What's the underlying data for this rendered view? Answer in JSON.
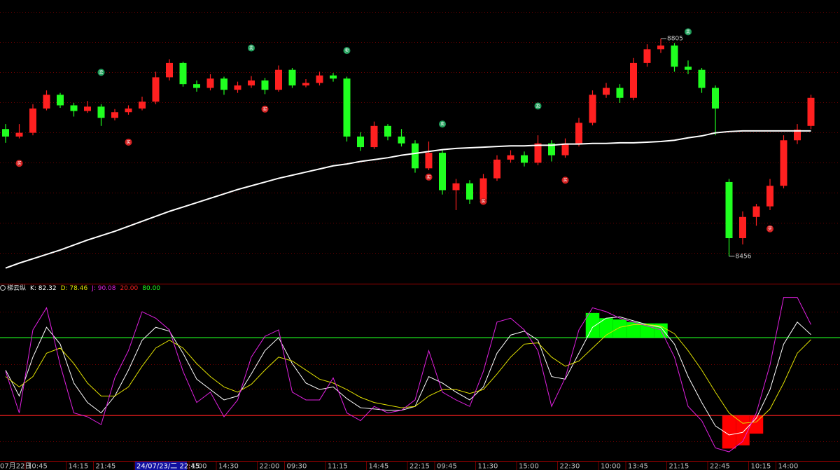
{
  "chart_data": [
    {
      "type": "candlestick",
      "categories": [
        "07月22日",
        null,
        "10:45",
        null,
        null,
        "14:15",
        null,
        "21:45",
        null,
        null,
        "24/07/23/二 22:45",
        null,
        null,
        null,
        "1:00",
        null,
        "14:30",
        null,
        null,
        "22:00",
        null,
        "09:30",
        null,
        null,
        "11:15",
        null,
        null,
        "14:45",
        null,
        null,
        "22:15",
        null,
        "09:45",
        null,
        null,
        "11:30",
        null,
        null,
        "15:00",
        null,
        null,
        "22:30",
        null,
        null,
        "10:00",
        null,
        "13:45",
        null,
        null,
        "21:15",
        null,
        null,
        "22:45",
        null,
        null,
        "10:15",
        null,
        "14:00",
        null,
        null
      ],
      "highlight_category": 10,
      "candles": [
        [
          8660,
          8668,
          8638,
          8648
        ],
        [
          8648,
          8668,
          8645,
          8654
        ],
        [
          8654,
          8700,
          8650,
          8693
        ],
        [
          8693,
          8722,
          8690,
          8715
        ],
        [
          8715,
          8718,
          8694,
          8698
        ],
        [
          8698,
          8702,
          8680,
          8689
        ],
        [
          8689,
          8705,
          8686,
          8696
        ],
        [
          8696,
          8700,
          8665,
          8678
        ],
        [
          8678,
          8692,
          8674,
          8687
        ],
        [
          8687,
          8698,
          8683,
          8693
        ],
        [
          8693,
          8712,
          8690,
          8704
        ],
        [
          8704,
          8752,
          8700,
          8743
        ],
        [
          8743,
          8772,
          8738,
          8766
        ],
        [
          8766,
          8768,
          8728,
          8732
        ],
        [
          8732,
          8738,
          8720,
          8726
        ],
        [
          8726,
          8748,
          8722,
          8741
        ],
        [
          8741,
          8744,
          8715,
          8723
        ],
        [
          8723,
          8736,
          8718,
          8730
        ],
        [
          8730,
          8745,
          8726,
          8738
        ],
        [
          8738,
          8742,
          8716,
          8723
        ],
        [
          8723,
          8762,
          8720,
          8755
        ],
        [
          8755,
          8758,
          8726,
          8730
        ],
        [
          8730,
          8740,
          8727,
          8734
        ],
        [
          8734,
          8752,
          8730,
          8746
        ],
        [
          8746,
          8750,
          8736,
          8741
        ],
        [
          8741,
          8744,
          8640,
          8648
        ],
        [
          8648,
          8655,
          8625,
          8631
        ],
        [
          8631,
          8672,
          8628,
          8665
        ],
        [
          8665,
          8668,
          8642,
          8648
        ],
        [
          8648,
          8660,
          8632,
          8637
        ],
        [
          8637,
          8642,
          8590,
          8597
        ],
        [
          8597,
          8640,
          8594,
          8622
        ],
        [
          8622,
          8626,
          8555,
          8562
        ],
        [
          8562,
          8580,
          8530,
          8573
        ],
        [
          8573,
          8578,
          8540,
          8547
        ],
        [
          8547,
          8588,
          8544,
          8581
        ],
        [
          8581,
          8618,
          8577,
          8611
        ],
        [
          8611,
          8626,
          8606,
          8618
        ],
        [
          8618,
          8624,
          8600,
          8606
        ],
        [
          8606,
          8650,
          8602,
          8637
        ],
        [
          8637,
          8642,
          8608,
          8618
        ],
        [
          8618,
          8645,
          8614,
          8637
        ],
        [
          8637,
          8678,
          8632,
          8670
        ],
        [
          8670,
          8722,
          8666,
          8715
        ],
        [
          8715,
          8734,
          8710,
          8726
        ],
        [
          8726,
          8732,
          8702,
          8710
        ],
        [
          8710,
          8774,
          8706,
          8766
        ],
        [
          8766,
          8796,
          8760,
          8788
        ],
        [
          8788,
          8805,
          8782,
          8794
        ],
        [
          8794,
          8798,
          8752,
          8760
        ],
        [
          8760,
          8770,
          8748,
          8755
        ],
        [
          8755,
          8758,
          8718,
          8726
        ],
        [
          8726,
          8730,
          8650,
          8693
        ],
        [
          8575,
          8580,
          8456,
          8485
        ],
        [
          8485,
          8528,
          8475,
          8519
        ],
        [
          8519,
          8540,
          8505,
          8536
        ],
        [
          8536,
          8580,
          8530,
          8569
        ],
        [
          8569,
          8650,
          8565,
          8642
        ],
        [
          8642,
          8668,
          8636,
          8659
        ],
        [
          8665,
          8715,
          8660,
          8710
        ]
      ],
      "up_color": "#ff2020",
      "down_color": "#20ff20",
      "ylim": [
        8412,
        8867
      ],
      "moving_average": {
        "color": "#ffffff",
        "values": [
          8437,
          8445,
          8452,
          8459,
          8466,
          8474,
          8482,
          8489,
          8496,
          8504,
          8512,
          8520,
          8528,
          8535,
          8542,
          8549,
          8556,
          8563,
          8569,
          8575,
          8581,
          8586,
          8591,
          8596,
          8601,
          8604,
          8608,
          8611,
          8614,
          8618,
          8621,
          8624,
          8627,
          8629,
          8630,
          8631,
          8632,
          8633,
          8633,
          8634,
          8634,
          8636,
          8636,
          8637,
          8637,
          8638,
          8638,
          8639,
          8640,
          8642,
          8646,
          8649,
          8654,
          8656,
          8657,
          8657,
          8657,
          8657,
          8657,
          8657
        ]
      },
      "signals": [
        {
          "name": "卖",
          "color": "#1f9e5a",
          "values": [
            null,
            null,
            null,
            null,
            null,
            null,
            null,
            8751,
            null,
            null,
            null,
            null,
            null,
            null,
            null,
            null,
            null,
            null,
            8790,
            null,
            null,
            null,
            null,
            null,
            null,
            8786,
            null,
            null,
            null,
            null,
            null,
            null,
            8668,
            null,
            null,
            null,
            null,
            null,
            null,
            8697,
            null,
            null,
            null,
            null,
            null,
            null,
            null,
            null,
            null,
            null,
            8816,
            null,
            null,
            null,
            null,
            null,
            null,
            null,
            null,
            null
          ]
        },
        {
          "name": "买",
          "color": "#d42020",
          "values": [
            null,
            8605,
            null,
            null,
            null,
            null,
            null,
            null,
            null,
            8639,
            null,
            null,
            null,
            null,
            null,
            null,
            null,
            null,
            null,
            8692,
            null,
            null,
            null,
            null,
            null,
            null,
            null,
            null,
            null,
            null,
            null,
            8583,
            null,
            null,
            null,
            8544,
            null,
            null,
            null,
            null,
            null,
            8578,
            null,
            null,
            null,
            null,
            null,
            null,
            null,
            null,
            null,
            null,
            null,
            null,
            null,
            null,
            8500,
            null,
            null,
            null
          ]
        }
      ],
      "extremes": [
        {
          "value": 8805,
          "label": "8805"
        },
        {
          "value": 8456,
          "label": "8456"
        }
      ]
    },
    {
      "type": "line",
      "title": "梯云纵",
      "ylim": [
        -15,
        121.6
      ],
      "series": [
        {
          "name": "K: 82.32",
          "color": "#ffffff",
          "values": [
            55,
            35,
            65,
            88,
            75,
            45,
            30,
            22,
            35,
            55,
            78,
            88,
            85,
            68,
            48,
            40,
            32,
            35,
            52,
            70,
            80,
            60,
            45,
            40,
            42,
            33,
            26,
            25,
            24,
            24,
            27,
            50,
            45,
            38,
            32,
            42,
            68,
            82,
            85,
            78,
            50,
            48,
            68,
            88,
            95,
            96,
            93,
            90,
            88,
            75,
            50,
            30,
            12,
            5,
            7,
            18,
            40,
            75,
            92,
            82.32
          ]
        },
        {
          "name": "D: 78.46",
          "color": "#e0e000",
          "values": [
            50,
            42,
            50,
            68,
            72,
            60,
            45,
            35,
            35,
            42,
            58,
            72,
            78,
            72,
            60,
            50,
            42,
            38,
            44,
            55,
            65,
            62,
            55,
            48,
            45,
            40,
            34,
            30,
            28,
            26,
            27,
            35,
            40,
            40,
            37,
            40,
            52,
            65,
            75,
            76,
            65,
            58,
            62,
            72,
            82,
            88,
            90,
            90,
            89,
            83,
            70,
            55,
            38,
            22,
            14,
            15,
            25,
            45,
            68,
            78.46
          ]
        },
        {
          "name": "J: 90.08",
          "color": "#e020e0",
          "values": [
            54,
            22,
            86,
            103,
            59,
            22,
            19,
            13,
            49,
            70,
            100,
            95,
            86,
            54,
            30,
            38,
            19,
            32,
            65,
            81,
            86,
            38,
            32,
            32,
            49,
            22,
            16,
            27,
            22,
            24,
            32,
            70,
            38,
            32,
            27,
            54,
            92,
            95,
            86,
            70,
            27,
            49,
            86,
            103,
            100,
            95,
            92,
            89,
            86,
            65,
            27,
            16,
            -5,
            -8,
            0,
            22,
            59,
            111,
            111,
            90.08
          ]
        }
      ],
      "levels": [
        {
          "value": 20,
          "label": "20.00",
          "color": "#ff2020"
        },
        {
          "value": 80,
          "label": "80.00",
          "color": "#20ff20"
        }
      ],
      "bars": [
        {
          "color": "#ff0000",
          "values": [
            null,
            null,
            null,
            null,
            null,
            null,
            null,
            null,
            null,
            null,
            null,
            null,
            null,
            null,
            null,
            null,
            null,
            null,
            null,
            null,
            null,
            null,
            null,
            null,
            null,
            null,
            null,
            null,
            null,
            null,
            null,
            null,
            null,
            null,
            null,
            null,
            null,
            null,
            null,
            null,
            null,
            null,
            null,
            null,
            null,
            null,
            null,
            null,
            null,
            null,
            null,
            null,
            null,
            -5.5,
            -3,
            6,
            null,
            null,
            null,
            null
          ]
        },
        {
          "color": "#00ff00",
          "values": [
            null,
            null,
            null,
            null,
            null,
            null,
            null,
            null,
            null,
            null,
            null,
            null,
            null,
            null,
            null,
            null,
            null,
            null,
            null,
            null,
            null,
            null,
            null,
            null,
            null,
            null,
            null,
            null,
            null,
            null,
            null,
            null,
            null,
            null,
            null,
            null,
            null,
            null,
            null,
            null,
            null,
            null,
            null,
            99,
            95,
            94,
            92,
            91,
            91,
            null,
            null,
            null,
            null,
            null,
            null,
            null,
            null,
            null,
            null,
            null
          ]
        }
      ]
    }
  ]
}
